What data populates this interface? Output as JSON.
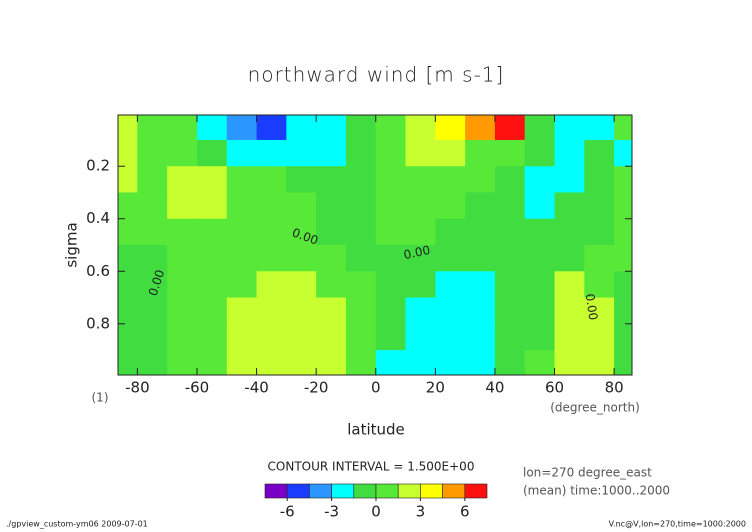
{
  "chart_data": {
    "type": "contour",
    "title": "northward wind [m s-1]",
    "x_label": "latitude",
    "x_unit": "(degree_north)",
    "y_label": "sigma",
    "y_unit": "(1)",
    "xlim": [
      -86.5,
      86
    ],
    "xticks": [
      -80,
      -60,
      -40,
      -20,
      0,
      20,
      40,
      60,
      80
    ],
    "ylim": [
      0.005,
      0.995
    ],
    "yticks": [
      0.2,
      0.4,
      0.6,
      0.8
    ],
    "x": [
      -85,
      -75,
      -65,
      -55,
      -45,
      -35,
      -25,
      -15,
      -5,
      5,
      15,
      25,
      35,
      45,
      55,
      65,
      75,
      85
    ],
    "y": [
      0.05,
      0.15,
      0.25,
      0.35,
      0.45,
      0.55,
      0.65,
      0.75,
      0.85,
      0.95
    ],
    "z": [
      [
        2,
        0.5,
        0.5,
        -2,
        -4,
        -5,
        -3,
        -2,
        -0.5,
        0.5,
        2,
        3.5,
        5,
        6,
        -0.5,
        -2,
        -2,
        0.5
      ],
      [
        2,
        0.5,
        0.5,
        -0.5,
        -2,
        -2,
        -2,
        -2,
        -0.5,
        0.5,
        2,
        2,
        0.5,
        0.5,
        -0.5,
        -2,
        -0.5,
        -2
      ],
      [
        2,
        0.5,
        2,
        2,
        0.5,
        0.5,
        -0.5,
        -0.5,
        -0.5,
        0.5,
        0.5,
        0.5,
        0.5,
        -0.5,
        -2,
        -2,
        -0.5,
        0.5
      ],
      [
        0.5,
        0.5,
        2,
        2,
        0.5,
        0.5,
        0.5,
        -0.5,
        -0.5,
        0.5,
        0.5,
        0.5,
        -0.5,
        -0.5,
        -2,
        -0.5,
        -0.5,
        0.5
      ],
      [
        0.5,
        0.5,
        0.5,
        0.5,
        0.5,
        0.5,
        0.5,
        -0.5,
        -0.5,
        0.5,
        0.5,
        -0.5,
        -0.5,
        -0.5,
        -0.5,
        -0.5,
        -0.5,
        0.5
      ],
      [
        -0.5,
        -0.5,
        0.5,
        0.5,
        0.5,
        0.5,
        0.5,
        0.5,
        -0.5,
        -0.5,
        -0.5,
        -0.5,
        -0.5,
        -0.5,
        -0.5,
        -0.5,
        0.5,
        0.5
      ],
      [
        -0.5,
        -0.5,
        0.5,
        0.5,
        0.5,
        2,
        2,
        0.5,
        0.5,
        -0.5,
        -0.5,
        -2,
        -2,
        -0.5,
        -0.5,
        2,
        0.5,
        -0.5
      ],
      [
        -0.5,
        -0.5,
        0.5,
        0.5,
        2,
        2,
        2,
        2,
        0.5,
        -0.5,
        -2,
        -2,
        -2,
        -0.5,
        -0.5,
        2,
        2,
        -0.5
      ],
      [
        -0.5,
        -0.5,
        0.5,
        0.5,
        2,
        2,
        2,
        2,
        0.5,
        -0.5,
        -2,
        -2,
        -2,
        -0.5,
        -0.5,
        2,
        2,
        -0.5
      ],
      [
        -0.5,
        -0.5,
        0.5,
        0.5,
        2,
        2,
        2,
        2,
        0.5,
        -2,
        -2,
        -2,
        -2,
        -0.5,
        0.5,
        2,
        2,
        -0.5
      ]
    ],
    "levels": [
      -7.5,
      -6,
      -4.5,
      -3,
      -1.5,
      0,
      1.5,
      3,
      4.5,
      6,
      7.5
    ],
    "level_colors": [
      "#7a00c8",
      "#1a3cff",
      "#2c96ff",
      "#00ffff",
      "#40dc40",
      "#58e838",
      "#c8ff30",
      "#ffff00",
      "#ff9a00",
      "#ff1010"
    ],
    "colorbar_ticks": [
      -6,
      -3,
      0,
      3,
      6
    ],
    "contour_interval_text": "CONTOUR INTERVAL = 1.500E+00",
    "contour_labels": [
      "0.00",
      "0.00",
      "0.00",
      "0.00"
    ],
    "info": [
      "lon=270 degree_east",
      "(mean) time:1000..2000"
    ],
    "footer_left": "./gpview_custom-ym06  2009-07-01",
    "footer_right": "V.nc@V,lon=270,time=1000:2000"
  }
}
